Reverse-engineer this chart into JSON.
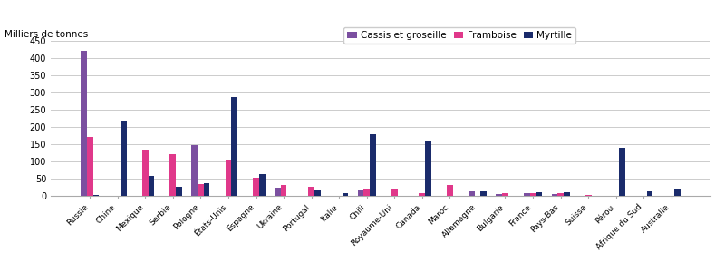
{
  "categories": [
    "Russie",
    "Chine",
    "Mexique",
    "Serbie",
    "Pologne",
    "États-Unis",
    "Espagne",
    "Ukraine",
    "Portugal",
    "Italie",
    "Chili",
    "Royaume-Uni",
    "Canada",
    "Maroc",
    "Allemagne",
    "Bulgarie",
    "France",
    "Pays-Bas",
    "Suisse",
    "Pérou",
    "Afrique du Sud",
    "Australie"
  ],
  "cassis": [
    420,
    0,
    0,
    0,
    147,
    0,
    0,
    25,
    0,
    0,
    15,
    0,
    0,
    0,
    13,
    5,
    7,
    6,
    0,
    0,
    0,
    0
  ],
  "framboise": [
    172,
    0,
    135,
    122,
    35,
    103,
    52,
    32,
    27,
    0,
    18,
    20,
    7,
    32,
    0,
    7,
    8,
    8,
    3,
    0,
    0,
    0
  ],
  "myrtille": [
    2,
    215,
    57,
    27,
    38,
    288,
    62,
    0,
    15,
    8,
    180,
    0,
    160,
    0,
    13,
    0,
    10,
    10,
    0,
    140,
    13,
    20
  ],
  "color_cassis": "#7b4fa0",
  "color_framboise": "#e0388a",
  "color_myrtille": "#1a2b6b",
  "top_label": "Milliers de tonnes",
  "ylim": [
    0,
    450
  ],
  "yticks": [
    0,
    50,
    100,
    150,
    200,
    250,
    300,
    350,
    400,
    450
  ],
  "legend_labels": [
    "Cassis et groseille",
    "Framboise",
    "Myrtille"
  ],
  "bar_width": 0.22,
  "bg_color": "#ffffff",
  "grid_color": "#cccccc"
}
